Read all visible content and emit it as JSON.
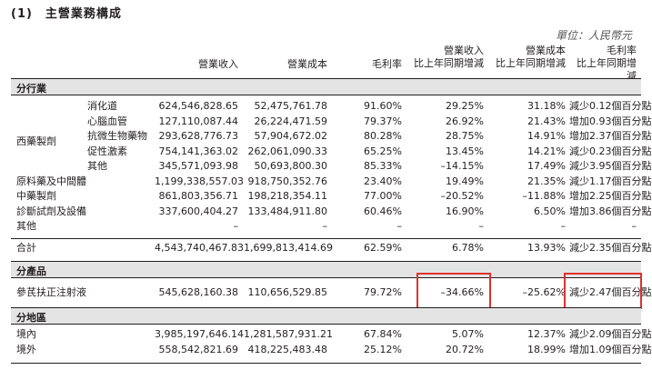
{
  "title": "(1)　主營業務構成",
  "unit": "單位：人民幣元",
  "headers": {
    "revenue": "營業收入",
    "cost": "營業成本",
    "gross_margin": "毛利率",
    "revenue_change_l1": "營業收入",
    "revenue_change_l2": "比上年同期增減",
    "cost_change_l1": "營業成本",
    "cost_change_l2": "比上年同期增減",
    "gm_change_l1": "毛利率",
    "gm_change_l2": "比上年同期增減"
  },
  "sections": {
    "industry": "分行業",
    "product": "分產品",
    "region": "分地區"
  },
  "industry_group_label": "西藥製劑",
  "industry_rows": [
    {
      "label": "消化道",
      "revenue": "624,546,828.65",
      "cost": "52,475,761.78",
      "gm": "91.60%",
      "rev_chg": "29.25%",
      "cost_chg": "31.18%",
      "gm_chg": "減少0.12個百分點"
    },
    {
      "label": "心腦血管",
      "revenue": "127,110,087.44",
      "cost": "26,224,471.59",
      "gm": "79.37%",
      "rev_chg": "26.92%",
      "cost_chg": "21.43%",
      "gm_chg": "增加0.93個百分點"
    },
    {
      "label": "抗微生物藥物",
      "revenue": "293,628,776.73",
      "cost": "57,904,672.02",
      "gm": "80.28%",
      "rev_chg": "28.75%",
      "cost_chg": "14.91%",
      "gm_chg": "增加2.37個百分點"
    },
    {
      "label": "促性激素",
      "revenue": "754,141,363.02",
      "cost": "262,061,090.33",
      "gm": "65.25%",
      "rev_chg": "13.45%",
      "cost_chg": "14.21%",
      "gm_chg": "減少0.23個百分點"
    },
    {
      "label": "其他",
      "revenue": "345,571,093.98",
      "cost": "50,693,800.30",
      "gm": "85.33%",
      "rev_chg": "–14.15%",
      "cost_chg": "17.49%",
      "gm_chg": "減少3.95個百分點"
    },
    {
      "label": "原料藥及中間體",
      "revenue": "1,199,338,557.03",
      "cost": "918,750,352.76",
      "gm": "23.40%",
      "rev_chg": "19.49%",
      "cost_chg": "21.35%",
      "gm_chg": "減少1.17個百分點"
    },
    {
      "label": "中藥製劑",
      "revenue": "861,803,356.71",
      "cost": "198,218,354.11",
      "gm": "77.00%",
      "rev_chg": "–20.52%",
      "cost_chg": "–11.88%",
      "gm_chg": "增加2.25個百分點"
    },
    {
      "label": "診斷試劑及設備",
      "revenue": "337,600,404.27",
      "cost": "133,484,911.80",
      "gm": "60.46%",
      "rev_chg": "16.90%",
      "cost_chg": "6.50%",
      "gm_chg": "增加3.86個百分點"
    },
    {
      "label": "其他",
      "revenue": "–",
      "cost": "–",
      "gm": "–",
      "rev_chg": "–",
      "cost_chg": "–",
      "gm_chg": "–"
    }
  ],
  "total": {
    "label": "合計",
    "revenue": "4,543,740,467.83",
    "cost": "1,699,813,414.69",
    "gm": "62.59%",
    "rev_chg": "6.78%",
    "cost_chg": "13.93%",
    "gm_chg": "減少2.35個百分點"
  },
  "product_row": {
    "label": "參芪扶正注射液",
    "revenue": "545,628,160.38",
    "cost": "110,656,529.85",
    "gm": "79.72%",
    "rev_chg": "–34.66%",
    "cost_chg": "–25.62%",
    "gm_chg": "減少2.47個百分點"
  },
  "region_rows": [
    {
      "label": "境內",
      "revenue": "3,985,197,646.14",
      "cost": "1,281,587,931.21",
      "gm": "67.84%",
      "rev_chg": "5.07%",
      "cost_chg": "12.37%",
      "gm_chg": "減少2.09個百分點"
    },
    {
      "label": "境外",
      "revenue": "558,542,821.69",
      "cost": "418,225,483.48",
      "gm": "25.12%",
      "rev_chg": "20.72%",
      "cost_chg": "18.99%",
      "gm_chg": "增加1.09個百分點"
    }
  ],
  "highlight_color": "#e0312c"
}
